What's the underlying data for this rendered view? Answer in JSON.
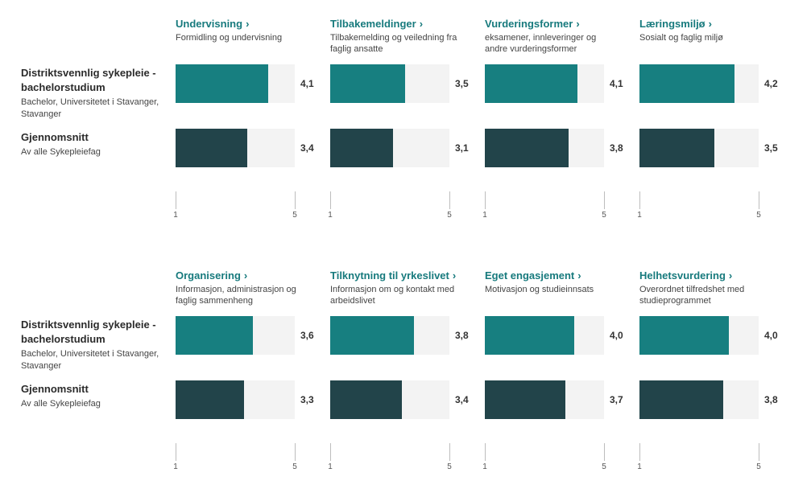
{
  "rows": [
    {
      "name": "Distriktsvennlig sykepleie - bachelorstudium",
      "sub": "Bachelor, Universitetet i Stavanger, Stavanger"
    },
    {
      "name": "Gjennomsnitt",
      "sub": "Av alle Sykepleiefag"
    }
  ],
  "accent_color": "#177f80",
  "average_color": "#22444a",
  "title_chevron": "›",
  "chart_data": [
    {
      "type": "bar",
      "title": "Undervisning",
      "subtitle": "Formidling og undervisning",
      "xlim": [
        1,
        5
      ],
      "tick_labels": [
        "1",
        "5"
      ],
      "values": [
        4.1,
        3.4
      ],
      "labels": [
        "4,1",
        "3,4"
      ]
    },
    {
      "type": "bar",
      "title": "Tilbakemeldinger",
      "subtitle": "Tilbakemelding og veiledning fra faglig ansatte",
      "xlim": [
        1,
        5
      ],
      "tick_labels": [
        "1",
        "5"
      ],
      "values": [
        3.5,
        3.1
      ],
      "labels": [
        "3,5",
        "3,1"
      ]
    },
    {
      "type": "bar",
      "title": "Vurderingsformer",
      "subtitle": "eksamener, innleveringer og andre vurderingsformer",
      "xlim": [
        1,
        5
      ],
      "tick_labels": [
        "1",
        "5"
      ],
      "values": [
        4.1,
        3.8
      ],
      "labels": [
        "4,1",
        "3,8"
      ]
    },
    {
      "type": "bar",
      "title": "Læringsmiljø",
      "subtitle": "Sosialt og faglig miljø",
      "xlim": [
        1,
        5
      ],
      "tick_labels": [
        "1",
        "5"
      ],
      "values": [
        4.2,
        3.5
      ],
      "labels": [
        "4,2",
        "3,5"
      ]
    },
    {
      "type": "bar",
      "title": "Organisering",
      "subtitle": "Informasjon, administrasjon og faglig sammenheng",
      "xlim": [
        1,
        5
      ],
      "tick_labels": [
        "1",
        "5"
      ],
      "values": [
        3.6,
        3.3
      ],
      "labels": [
        "3,6",
        "3,3"
      ]
    },
    {
      "type": "bar",
      "title": "Tilknytning til yrkeslivet",
      "subtitle": "Informasjon om og kontakt med arbeidslivet",
      "xlim": [
        1,
        5
      ],
      "tick_labels": [
        "1",
        "5"
      ],
      "values": [
        3.8,
        3.4
      ],
      "labels": [
        "3,8",
        "3,4"
      ]
    },
    {
      "type": "bar",
      "title": "Eget engasjement",
      "subtitle": "Motivasjon og studieinnsats",
      "xlim": [
        1,
        5
      ],
      "tick_labels": [
        "1",
        "5"
      ],
      "values": [
        4.0,
        3.7
      ],
      "labels": [
        "4,0",
        "3,7"
      ]
    },
    {
      "type": "bar",
      "title": "Helhetsvurdering",
      "subtitle": "Overordnet tilfredshet med studieprogrammet",
      "xlim": [
        1,
        5
      ],
      "tick_labels": [
        "1",
        "5"
      ],
      "values": [
        4.0,
        3.8
      ],
      "labels": [
        "4,0",
        "3,8"
      ]
    }
  ]
}
